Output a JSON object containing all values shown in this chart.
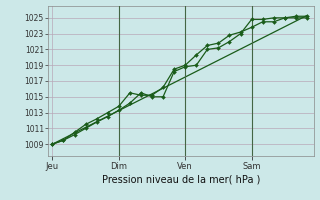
{
  "bg_color": "#cce8e8",
  "grid_color": "#b8a8b8",
  "line_color_dark": "#1a5c1a",
  "title": "Pression niveau de la mer( hPa )",
  "ylabel_ticks": [
    1009,
    1011,
    1013,
    1015,
    1017,
    1019,
    1021,
    1023,
    1025
  ],
  "ylim": [
    1007.5,
    1026.5
  ],
  "day_labels": [
    "Jeu",
    "Dim",
    "Ven",
    "Sam"
  ],
  "day_positions": [
    0,
    3,
    6,
    9
  ],
  "series1_x": [
    0,
    0.5,
    1.0,
    1.5,
    2.0,
    2.5,
    3.0,
    3.5,
    4.0,
    4.5,
    5.0,
    5.5,
    6.0,
    6.5,
    7.0,
    7.5,
    8.0,
    8.5,
    9.0,
    9.5,
    10.0,
    10.5,
    11.0,
    11.5
  ],
  "series1_y": [
    1009.0,
    1009.5,
    1010.2,
    1011.0,
    1011.8,
    1012.5,
    1013.3,
    1014.2,
    1015.5,
    1015.0,
    1015.0,
    1018.2,
    1018.8,
    1019.0,
    1021.0,
    1021.2,
    1022.0,
    1023.0,
    1024.8,
    1024.8,
    1025.0,
    1025.0,
    1025.0,
    1025.0
  ],
  "series2_x": [
    0,
    0.5,
    1.0,
    1.5,
    2.0,
    2.5,
    3.0,
    3.5,
    4.0,
    4.5,
    5.0,
    5.5,
    6.0,
    6.5,
    7.0,
    7.5,
    8.0,
    8.5,
    9.0,
    9.5,
    10.0,
    10.5,
    11.0,
    11.5
  ],
  "series2_y": [
    1009.0,
    1009.5,
    1010.5,
    1011.5,
    1012.2,
    1013.0,
    1013.8,
    1015.5,
    1015.2,
    1015.2,
    1016.2,
    1018.5,
    1019.0,
    1020.3,
    1021.5,
    1021.8,
    1022.8,
    1023.2,
    1023.8,
    1024.5,
    1024.5,
    1025.0,
    1025.2,
    1025.2
  ],
  "trend_x": [
    0,
    11.5
  ],
  "trend_y": [
    1009.0,
    1025.3
  ],
  "vline_positions": [
    3,
    6,
    9
  ],
  "vline_color": "#446644",
  "xlim": [
    -0.2,
    11.8
  ]
}
